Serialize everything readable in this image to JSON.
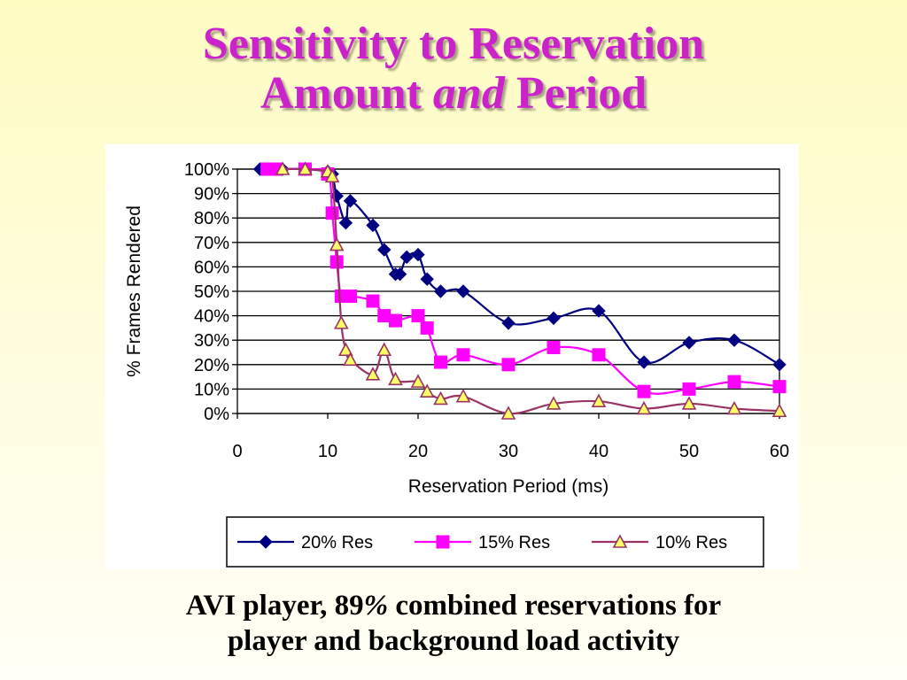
{
  "slide": {
    "title_line1": "Sensitivity to Reservation",
    "title_line2_pre": "Amount ",
    "title_line2_italic": "and",
    "title_line2_post": " Period",
    "caption_line1_pre": "AVI player, 89",
    "caption_line1_italic": "%",
    "caption_line1_post": " combined reservations for",
    "caption_line2": "player and background load activity"
  },
  "chart_data": {
    "type": "line",
    "title": "",
    "xlabel": "Reservation Period (ms)",
    "ylabel": "% Frames Rendered",
    "xlim": [
      0,
      60
    ],
    "ylim": [
      0,
      100
    ],
    "xticks": [
      "0",
      "10",
      "20",
      "30",
      "40",
      "50",
      "60"
    ],
    "yticks": [
      "0%",
      "10%",
      "20%",
      "30%",
      "40%",
      "50%",
      "60%",
      "70%",
      "80%",
      "90%",
      "100%"
    ],
    "grid": "horizontal",
    "legend_position": "bottom",
    "series": [
      {
        "name": "20% Res",
        "color": "#000080",
        "marker": "diamond",
        "points": [
          [
            2.5,
            100
          ],
          [
            3.3,
            100
          ],
          [
            4.2,
            100
          ],
          [
            5,
            100
          ],
          [
            7.5,
            100
          ],
          [
            10,
            99
          ],
          [
            10.5,
            98
          ],
          [
            11,
            89
          ],
          [
            12,
            78
          ],
          [
            12.5,
            87
          ],
          [
            15,
            77
          ],
          [
            16.25,
            67
          ],
          [
            17.5,
            57
          ],
          [
            18,
            57
          ],
          [
            18.75,
            64
          ],
          [
            20,
            65
          ],
          [
            21,
            55
          ],
          [
            22.5,
            50
          ],
          [
            25,
            50
          ],
          [
            30,
            37
          ],
          [
            35,
            39
          ],
          [
            40,
            42
          ],
          [
            45,
            21
          ],
          [
            50,
            29
          ],
          [
            55,
            30
          ],
          [
            60,
            20
          ]
        ]
      },
      {
        "name": "15% Res",
        "color": "#ff00ff",
        "marker": "square",
        "points": [
          [
            3.3,
            100
          ],
          [
            4.2,
            100
          ],
          [
            7.5,
            100
          ],
          [
            10,
            98
          ],
          [
            10.5,
            82
          ],
          [
            11,
            62
          ],
          [
            11.5,
            48
          ],
          [
            12.5,
            48
          ],
          [
            15,
            46
          ],
          [
            16.25,
            40
          ],
          [
            17.5,
            38
          ],
          [
            20,
            40
          ],
          [
            21,
            35
          ],
          [
            22.5,
            21
          ],
          [
            25,
            24
          ],
          [
            30,
            20
          ],
          [
            35,
            27
          ],
          [
            40,
            24
          ],
          [
            45,
            9
          ],
          [
            50,
            10
          ],
          [
            55,
            13
          ],
          [
            60,
            11
          ]
        ]
      },
      {
        "name": "10% Res",
        "color": "#993366",
        "marker": "triangle",
        "points": [
          [
            5,
            100
          ],
          [
            7.5,
            100
          ],
          [
            10,
            99
          ],
          [
            10.5,
            97
          ],
          [
            11,
            69
          ],
          [
            11.5,
            37
          ],
          [
            12,
            26
          ],
          [
            12.5,
            22
          ],
          [
            15,
            16
          ],
          [
            16.25,
            26
          ],
          [
            17.5,
            14
          ],
          [
            20,
            13
          ],
          [
            21,
            9
          ],
          [
            22.5,
            6
          ],
          [
            25,
            7
          ],
          [
            30,
            0
          ],
          [
            35,
            4
          ],
          [
            40,
            5
          ],
          [
            45,
            2
          ],
          [
            50,
            4
          ],
          [
            55,
            2
          ],
          [
            60,
            1
          ]
        ]
      }
    ]
  }
}
